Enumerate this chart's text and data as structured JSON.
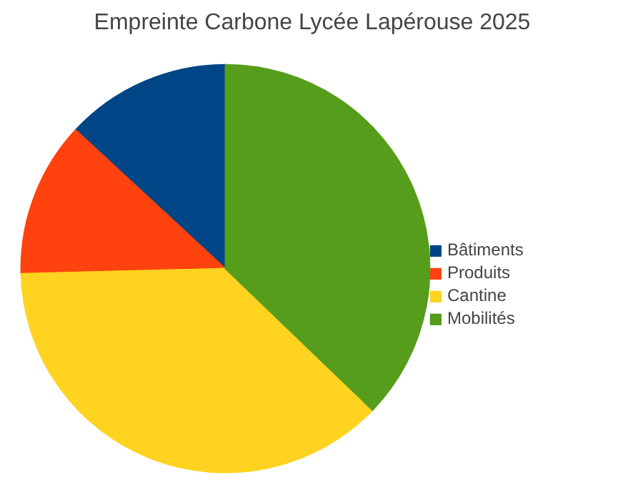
{
  "chart_data": {
    "type": "pie",
    "title": "Empreinte Carbone Lycée Lapérouse 2025",
    "categories": [
      "Bâtiments",
      "Produits",
      "Cantine",
      "Mobilités"
    ],
    "values": [
      13.1,
      12.3,
      37.4,
      37.2
    ],
    "colors": [
      "#004586",
      "#ff420e",
      "#ffd320",
      "#579d1c"
    ],
    "legend": "right"
  }
}
